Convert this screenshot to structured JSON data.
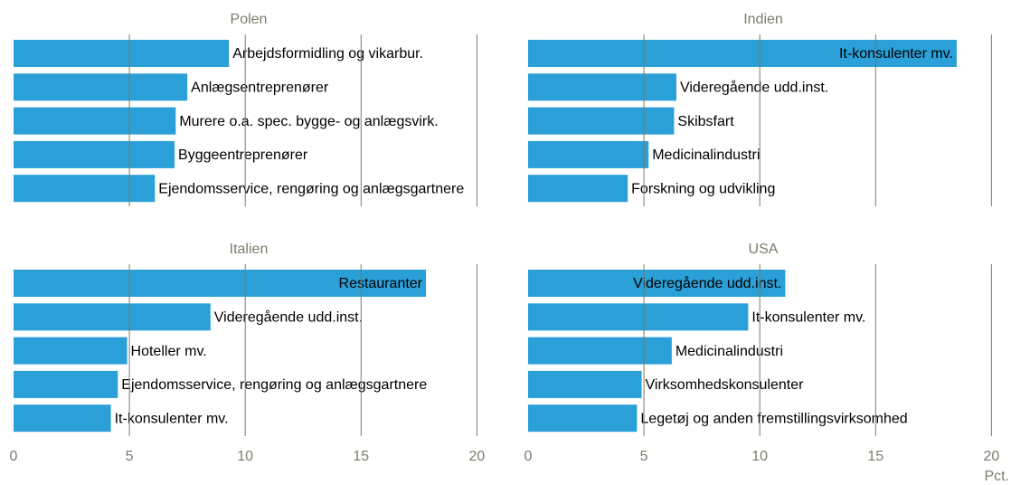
{
  "chart_data": [
    {
      "type": "bar",
      "orientation": "horizontal",
      "title": "Polen",
      "categories": [
        "Arbejdsformidling og vikarbur.",
        "Anlægsentreprenører",
        "Murere o.a. spec. bygge- og anlægsvirk.",
        "Byggeentreprenører",
        "Ejendomsservice, rengøring og anlægsgartnere"
      ],
      "values": [
        9.3,
        7.5,
        7.0,
        6.95,
        6.1
      ],
      "color": "#2a9fd8",
      "xlim": [
        0,
        21
      ],
      "xticks": [
        0,
        5,
        10,
        15,
        20
      ],
      "grid": true
    },
    {
      "type": "bar",
      "orientation": "horizontal",
      "title": "Indien",
      "categories": [
        "It-konsulenter mv.",
        "Videregående udd.inst.",
        "Skibsfart",
        "Medicinalindustri",
        "Forskning og udvikling"
      ],
      "values": [
        18.5,
        6.4,
        6.3,
        5.2,
        4.3
      ],
      "color": "#2a9fd8",
      "xlim": [
        0,
        21
      ],
      "xticks": [
        0,
        5,
        10,
        15,
        20
      ],
      "grid": true
    },
    {
      "type": "bar",
      "orientation": "horizontal",
      "title": "Italien",
      "categories": [
        "Restauranter",
        "Videregående udd.inst.",
        "Hoteller mv.",
        "Ejendomsservice, rengøring og anlægsgartnere",
        "It-konsulenter mv."
      ],
      "values": [
        17.8,
        8.5,
        4.9,
        4.5,
        4.2
      ],
      "color": "#2a9fd8",
      "xlim": [
        0,
        21
      ],
      "xticks": [
        0,
        5,
        10,
        15,
        20
      ],
      "grid": true
    },
    {
      "type": "bar",
      "orientation": "horizontal",
      "title": "USA",
      "categories": [
        "Videregående udd.inst.",
        "It-konsulenter mv.",
        "Medicinalindustri",
        "Virksomhedskonsulenter",
        "Legetøj og anden fremstillingsvirksomhed"
      ],
      "values": [
        11.1,
        9.5,
        6.2,
        4.9,
        4.7
      ],
      "color": "#2a9fd8",
      "xlim": [
        0,
        21
      ],
      "xticks": [
        0,
        5,
        10,
        15,
        20
      ],
      "grid": true
    }
  ],
  "x_label": "Pct."
}
